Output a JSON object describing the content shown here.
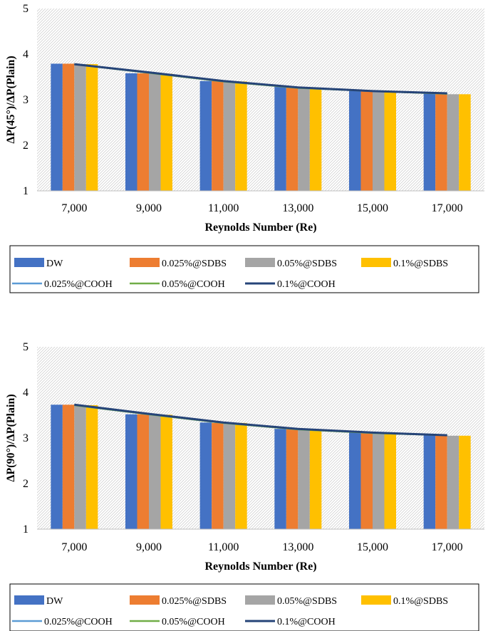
{
  "chart_data": [
    {
      "type": "bar",
      "title": "",
      "xlabel": "Reynolds Number (Re)",
      "ylabel": "ΔP(45°)/ΔP(Plain)",
      "ylim": [
        1,
        5
      ],
      "yticks": [
        1,
        2,
        3,
        4,
        5
      ],
      "grid": false,
      "categories": [
        "7,000",
        "9,000",
        "11,000",
        "13,000",
        "15,000",
        "17,000"
      ],
      "bar_series": [
        {
          "name": "DW",
          "color": "#4472C4",
          "values": [
            3.79,
            3.58,
            3.41,
            3.28,
            3.19,
            3.13
          ]
        },
        {
          "name": "0.025%@SDBS",
          "color": "#ED7D31",
          "values": [
            3.79,
            3.58,
            3.41,
            3.27,
            3.19,
            3.13
          ]
        },
        {
          "name": "0.05%@SDBS",
          "color": "#A5A5A5",
          "values": [
            3.78,
            3.57,
            3.4,
            3.26,
            3.18,
            3.12
          ]
        },
        {
          "name": "0.1%@SDBS",
          "color": "#FFC000",
          "values": [
            3.78,
            3.57,
            3.4,
            3.26,
            3.18,
            3.12
          ]
        }
      ],
      "line_series": [
        {
          "name": "0.025%@COOH",
          "color": "#5B9BD5",
          "values": [
            3.78,
            3.59,
            3.4,
            3.26,
            3.19,
            3.13
          ]
        },
        {
          "name": "0.05%@COOH",
          "color": "#70AD47",
          "values": [
            3.78,
            3.59,
            3.4,
            3.26,
            3.19,
            3.13
          ]
        },
        {
          "name": "0.1%@COOH",
          "color": "#264478",
          "values": [
            3.78,
            3.6,
            3.41,
            3.27,
            3.19,
            3.14
          ]
        }
      ],
      "legend_position": "bottom"
    },
    {
      "type": "bar",
      "title": "",
      "xlabel": "Reynolds Number (Re)",
      "ylabel": "ΔP(90°)/ΔP(Plain)",
      "ylim": [
        1,
        5
      ],
      "yticks": [
        1,
        2,
        3,
        4,
        5
      ],
      "grid": false,
      "categories": [
        "7,000",
        "9,000",
        "11,000",
        "13,000",
        "15,000",
        "17,000"
      ],
      "bar_series": [
        {
          "name": "DW",
          "color": "#4472C4",
          "values": [
            3.73,
            3.52,
            3.34,
            3.2,
            3.12,
            3.06
          ]
        },
        {
          "name": "0.025%@SDBS",
          "color": "#ED7D31",
          "values": [
            3.73,
            3.52,
            3.33,
            3.19,
            3.11,
            3.05
          ]
        },
        {
          "name": "0.05%@SDBS",
          "color": "#A5A5A5",
          "values": [
            3.72,
            3.51,
            3.33,
            3.19,
            3.11,
            3.05
          ]
        },
        {
          "name": "0.1%@SDBS",
          "color": "#FFC000",
          "values": [
            3.72,
            3.51,
            3.33,
            3.19,
            3.11,
            3.05
          ]
        }
      ],
      "line_series": [
        {
          "name": "0.025%@COOH",
          "color": "#5B9BD5",
          "values": [
            3.72,
            3.52,
            3.33,
            3.19,
            3.11,
            3.06
          ]
        },
        {
          "name": "0.05%@COOH",
          "color": "#70AD47",
          "values": [
            3.72,
            3.52,
            3.33,
            3.19,
            3.11,
            3.06
          ]
        },
        {
          "name": "0.1%@COOH",
          "color": "#264478",
          "values": [
            3.73,
            3.53,
            3.34,
            3.2,
            3.12,
            3.06
          ]
        }
      ],
      "legend_position": "bottom"
    }
  ]
}
